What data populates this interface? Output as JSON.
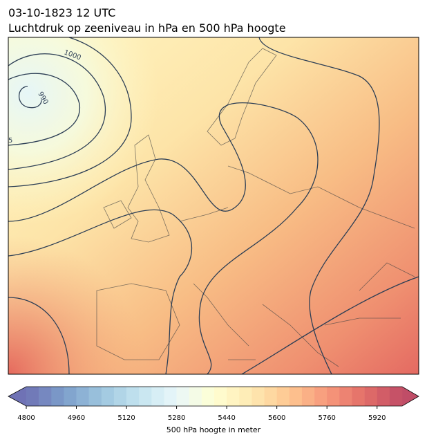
{
  "header": {
    "title": "03-10-1823 12 UTC",
    "subtitle": "Luchtdruk op zeeniveau in hPa en 500 hPa hoogte"
  },
  "map": {
    "contour_labels": [
      "1000",
      "990",
      "5"
    ]
  },
  "colorbar": {
    "label": "500 hPa hoogte in meter",
    "colormap": "RdYlBu_r",
    "lim": [
      4800,
      6000
    ],
    "ticks": [
      4800,
      4960,
      5120,
      5280,
      5440,
      5600,
      5760,
      5920
    ],
    "levels": [
      4800,
      4840,
      4880,
      4920,
      4960,
      5000,
      5040,
      5080,
      5120,
      5160,
      5200,
      5240,
      5280,
      5320,
      5360,
      5400,
      5440,
      5480,
      5520,
      5560,
      5600,
      5640,
      5680,
      5720,
      5760,
      5800,
      5840,
      5880,
      5920,
      5960,
      6000
    ]
  }
}
